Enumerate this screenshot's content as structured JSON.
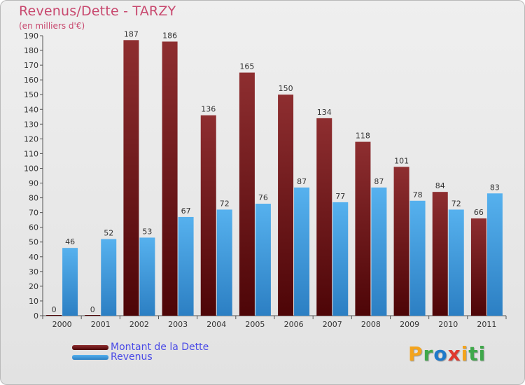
{
  "title": "Revenus/Dette - TARZY",
  "subtitle": "(en milliers d'€)",
  "legend": [
    {
      "label": "Montant de la Dette",
      "color": "#6e0f12"
    },
    {
      "label": "Revenus",
      "color": "#3f9be0"
    }
  ],
  "logo": {
    "text": "Proxiti",
    "letters": [
      "P",
      "r",
      "o",
      "x",
      "i",
      "ti"
    ]
  },
  "chart_data": {
    "type": "bar",
    "title": "Revenus/Dette - TARZY",
    "ylabel": "(en milliers d'€)",
    "xlabel": "",
    "ylim": [
      0,
      190
    ],
    "ytick_step": 10,
    "categories": [
      "2000",
      "2001",
      "2002",
      "2003",
      "2004",
      "2005",
      "2006",
      "2007",
      "2008",
      "2009",
      "2010",
      "2011"
    ],
    "series": [
      {
        "name": "Montant de la Dette",
        "values": [
          0,
          0,
          187,
          186,
          136,
          165,
          150,
          134,
          118,
          101,
          84,
          66
        ],
        "color_top": "#8e2e30",
        "color_bottom": "#4d0507"
      },
      {
        "name": "Revenus",
        "values": [
          46,
          52,
          53,
          67,
          72,
          76,
          87,
          77,
          87,
          78,
          72,
          83
        ],
        "color_top": "#56b1ee",
        "color_bottom": "#2c7fc3"
      }
    ],
    "grid": false,
    "legend_position": "bottom-left"
  }
}
